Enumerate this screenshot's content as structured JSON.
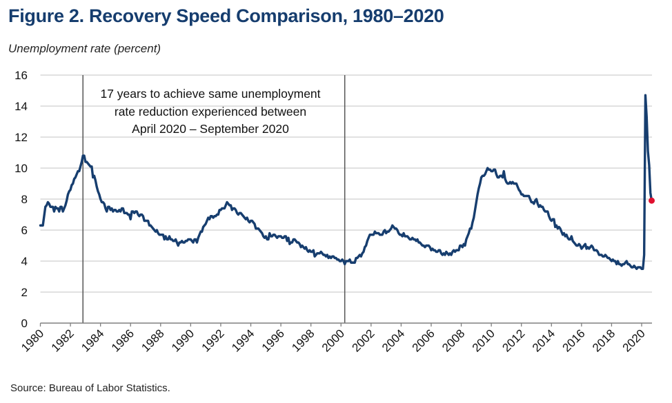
{
  "title": "Figure 2. Recovery Speed Comparison, 1980–2020",
  "subtitle": "Unemployment rate (percent)",
  "source": "Source: Bureau of Labor Statistics.",
  "colors": {
    "title": "#163d6e",
    "line": "#173e6f",
    "highlight_point": "#e0102f",
    "gridline": "#cfcfcf",
    "axis": "#7f7f7f",
    "marker_line": "#555555"
  },
  "chart_data": {
    "type": "line",
    "title": "Figure 2. Recovery Speed Comparison, 1980–2020",
    "xlabel": "",
    "ylabel": "Unemployment rate (percent)",
    "xlim": [
      1980,
      2020.75
    ],
    "ylim": [
      0,
      16
    ],
    "yticks": [
      0,
      2,
      4,
      6,
      8,
      10,
      12,
      14,
      16
    ],
    "xticks": [
      "1980",
      "1982",
      "1984",
      "1986",
      "1988",
      "1990",
      "1992",
      "1994",
      "1996",
      "1998",
      "2000",
      "2002",
      "2004",
      "2006",
      "2008",
      "2010",
      "2012",
      "2014",
      "2016",
      "2018",
      "2020"
    ],
    "grid": true,
    "frequency": "monthly",
    "start": "1980-01",
    "end": "2020-09",
    "series": [
      {
        "name": "Unemployment rate",
        "values": [
          6.3,
          6.3,
          6.3,
          6.9,
          7.5,
          7.6,
          7.8,
          7.7,
          7.5,
          7.5,
          7.5,
          7.2,
          7.5,
          7.4,
          7.4,
          7.2,
          7.5,
          7.5,
          7.2,
          7.4,
          7.6,
          7.9,
          8.3,
          8.5,
          8.6,
          8.9,
          9.0,
          9.3,
          9.4,
          9.6,
          9.8,
          9.8,
          10.1,
          10.4,
          10.8,
          10.8,
          10.4,
          10.4,
          10.3,
          10.2,
          10.1,
          10.1,
          9.4,
          9.5,
          9.2,
          8.8,
          8.5,
          8.3,
          8.0,
          7.8,
          7.8,
          7.7,
          7.4,
          7.2,
          7.5,
          7.5,
          7.3,
          7.4,
          7.2,
          7.3,
          7.3,
          7.2,
          7.2,
          7.3,
          7.2,
          7.4,
          7.4,
          7.1,
          7.1,
          7.1,
          7.0,
          7.0,
          6.7,
          7.2,
          7.2,
          7.1,
          7.2,
          7.2,
          7.0,
          6.9,
          7.0,
          7.0,
          6.9,
          6.6,
          6.6,
          6.6,
          6.6,
          6.3,
          6.3,
          6.2,
          6.1,
          6.0,
          5.9,
          6.0,
          5.8,
          5.7,
          5.7,
          5.7,
          5.7,
          5.4,
          5.6,
          5.4,
          5.4,
          5.6,
          5.4,
          5.4,
          5.3,
          5.3,
          5.4,
          5.2,
          5.0,
          5.2,
          5.2,
          5.3,
          5.2,
          5.2,
          5.3,
          5.3,
          5.4,
          5.4,
          5.4,
          5.3,
          5.2,
          5.4,
          5.4,
          5.2,
          5.5,
          5.7,
          5.9,
          5.9,
          6.2,
          6.3,
          6.4,
          6.6,
          6.8,
          6.7,
          6.9,
          6.9,
          6.8,
          6.9,
          6.9,
          7.0,
          7.0,
          7.3,
          7.3,
          7.4,
          7.4,
          7.4,
          7.6,
          7.8,
          7.7,
          7.6,
          7.6,
          7.3,
          7.4,
          7.4,
          7.3,
          7.1,
          7.0,
          7.1,
          7.1,
          7.0,
          6.9,
          6.8,
          6.7,
          6.8,
          6.6,
          6.5,
          6.6,
          6.6,
          6.5,
          6.4,
          6.1,
          6.1,
          6.1,
          6.0,
          5.9,
          5.8,
          5.6,
          5.5,
          5.6,
          5.4,
          5.4,
          5.8,
          5.6,
          5.6,
          5.7,
          5.7,
          5.6,
          5.5,
          5.6,
          5.6,
          5.6,
          5.5,
          5.5,
          5.6,
          5.6,
          5.3,
          5.5,
          5.1,
          5.2,
          5.2,
          5.4,
          5.4,
          5.3,
          5.2,
          5.2,
          5.1,
          4.9,
          5.0,
          4.9,
          4.8,
          4.9,
          4.7,
          4.6,
          4.7,
          4.6,
          4.6,
          4.7,
          4.3,
          4.4,
          4.5,
          4.5,
          4.5,
          4.6,
          4.5,
          4.4,
          4.4,
          4.3,
          4.4,
          4.2,
          4.3,
          4.2,
          4.3,
          4.3,
          4.2,
          4.2,
          4.1,
          4.1,
          4.0,
          4.0,
          4.1,
          4.0,
          3.8,
          4.0,
          4.0,
          4.0,
          4.1,
          3.9,
          3.9,
          3.9,
          3.9,
          4.2,
          4.2,
          4.3,
          4.4,
          4.3,
          4.5,
          4.6,
          4.9,
          5.0,
          5.3,
          5.5,
          5.7,
          5.7,
          5.7,
          5.7,
          5.9,
          5.8,
          5.8,
          5.8,
          5.7,
          5.7,
          5.7,
          5.9,
          6.0,
          5.8,
          5.9,
          5.9,
          6.0,
          6.1,
          6.3,
          6.2,
          6.1,
          6.1,
          6.0,
          5.8,
          5.7,
          5.7,
          5.6,
          5.8,
          5.6,
          5.6,
          5.6,
          5.5,
          5.4,
          5.4,
          5.5,
          5.4,
          5.4,
          5.3,
          5.4,
          5.2,
          5.2,
          5.1,
          5.0,
          5.0,
          4.9,
          5.0,
          5.0,
          5.0,
          4.9,
          4.7,
          4.8,
          4.7,
          4.7,
          4.6,
          4.6,
          4.7,
          4.7,
          4.5,
          4.4,
          4.5,
          4.4,
          4.6,
          4.5,
          4.4,
          4.5,
          4.4,
          4.6,
          4.7,
          4.6,
          4.7,
          4.7,
          4.7,
          5.0,
          5.0,
          4.9,
          5.1,
          5.0,
          5.4,
          5.6,
          5.8,
          6.1,
          6.1,
          6.5,
          6.8,
          7.3,
          7.8,
          8.3,
          8.7,
          9.0,
          9.4,
          9.5,
          9.5,
          9.6,
          9.8,
          10.0,
          9.9,
          9.9,
          9.8,
          9.8,
          9.9,
          9.9,
          9.6,
          9.4,
          9.4,
          9.5,
          9.5,
          9.4,
          9.8,
          9.3,
          9.1,
          9.0,
          9.0,
          9.1,
          9.0,
          9.1,
          9.0,
          9.0,
          9.0,
          8.8,
          8.6,
          8.5,
          8.3,
          8.3,
          8.2,
          8.2,
          8.2,
          8.2,
          8.2,
          8.0,
          7.8,
          7.8,
          7.7,
          7.9,
          8.0,
          7.7,
          7.5,
          7.6,
          7.5,
          7.5,
          7.3,
          7.2,
          7.2,
          7.2,
          6.9,
          6.7,
          6.6,
          6.7,
          6.7,
          6.2,
          6.3,
          6.1,
          6.2,
          6.1,
          5.9,
          5.7,
          5.8,
          5.6,
          5.7,
          5.5,
          5.4,
          5.4,
          5.6,
          5.3,
          5.2,
          5.1,
          5.0,
          5.0,
          5.1,
          5.0,
          4.8,
          4.9,
          5.0,
          5.1,
          4.8,
          4.9,
          4.8,
          4.9,
          5.0,
          4.9,
          4.7,
          4.7,
          4.7,
          4.6,
          4.4,
          4.4,
          4.4,
          4.3,
          4.3,
          4.4,
          4.3,
          4.2,
          4.2,
          4.1,
          4.0,
          4.1,
          4.0,
          4.0,
          3.8,
          4.0,
          3.8,
          3.8,
          3.7,
          3.8,
          3.8,
          3.9,
          4.0,
          3.8,
          3.8,
          3.7,
          3.6,
          3.6,
          3.7,
          3.6,
          3.5,
          3.6,
          3.6,
          3.6,
          3.5,
          3.5,
          4.4,
          14.7,
          13.3,
          11.1,
          10.2,
          8.4,
          7.9
        ]
      }
    ],
    "highlight_point": {
      "date": "2020-09",
      "value": 7.9
    },
    "reference_lines": [
      {
        "date": "1982-11",
        "label": ""
      },
      {
        "date": "2000-04",
        "label": ""
      }
    ],
    "annotation": {
      "lines": [
        "17 years to achieve same unemployment",
        "rate reduction experienced between",
        "April 2020 – September 2020"
      ]
    },
    "legend": "none"
  }
}
